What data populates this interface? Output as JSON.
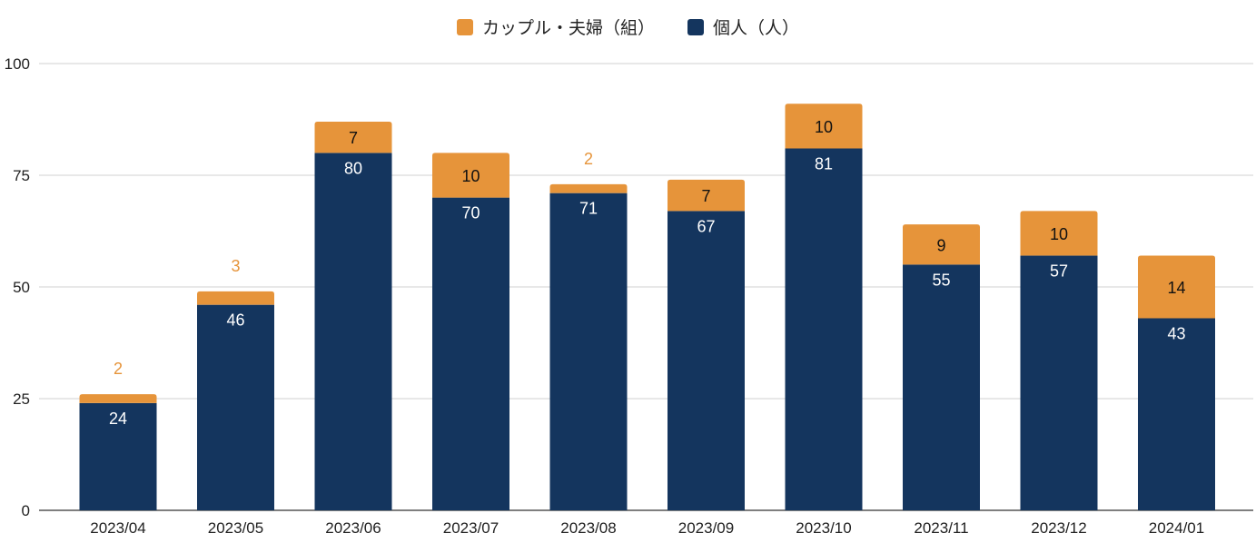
{
  "chart_data": {
    "type": "bar",
    "stacked": true,
    "categories": [
      "2023/04",
      "2023/05",
      "2023/06",
      "2023/07",
      "2023/08",
      "2023/09",
      "2023/10",
      "2023/11",
      "2023/12",
      "2024/01"
    ],
    "series": [
      {
        "name": "個人（人）",
        "color": "#14355e",
        "values": [
          24,
          46,
          80,
          70,
          71,
          67,
          81,
          55,
          57,
          43
        ]
      },
      {
        "name": "カップル・夫婦（組）",
        "color": "#e6943a",
        "values": [
          2,
          3,
          7,
          10,
          2,
          7,
          10,
          9,
          10,
          14
        ]
      }
    ],
    "legend": [
      "カップル・夫婦（組）",
      "個人（人）"
    ],
    "ylim": [
      0,
      100
    ],
    "yticks": [
      0,
      25,
      50,
      75,
      100
    ],
    "grid": true,
    "legend_position": "top-center",
    "xlabel": "",
    "ylabel": "",
    "title": ""
  }
}
